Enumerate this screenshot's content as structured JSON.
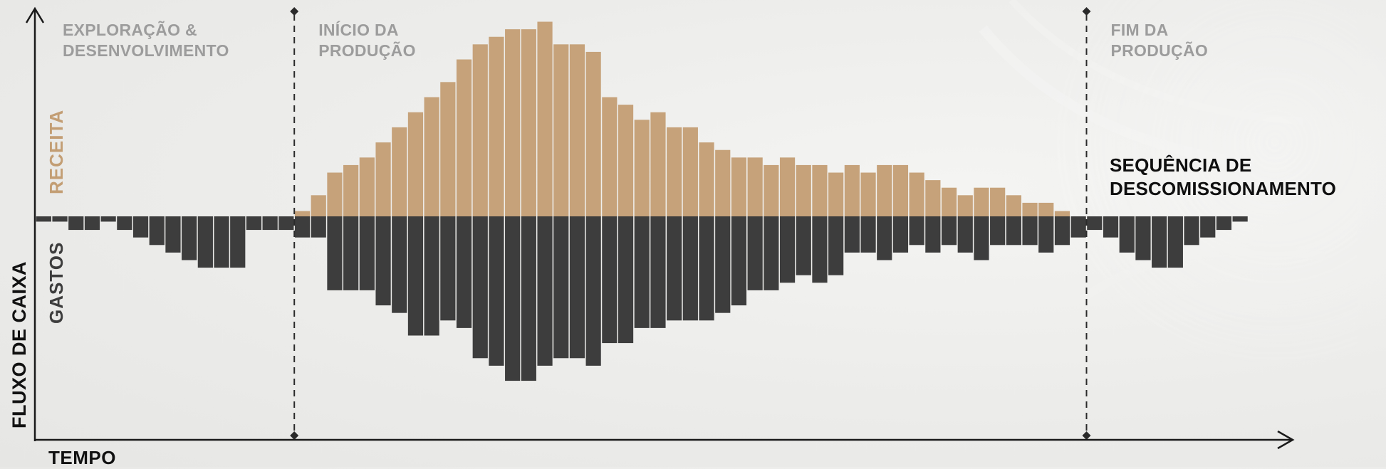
{
  "chart_data": {
    "type": "bar",
    "title": "",
    "xlabel": "TEMPO",
    "ylabel": "FLUXO DE CAIXA",
    "positive_label": "RECEITA",
    "negative_label": "GASTOS",
    "ylim": [
      -30,
      26
    ],
    "phases": [
      {
        "label": "EXPLORAÇÃO &\nDESENVOLVIMENTO",
        "start_period": 0
      },
      {
        "label": "INÍCIO DA\nPRODUÇÃO",
        "start_period": 16
      },
      {
        "label": "FIM DA\nPRODUÇÃO",
        "start_period": 65
      }
    ],
    "annotation": "SEQUÊNCIA DE\nDESCOMISSIONAMENTO",
    "receita": [
      0,
      0,
      0,
      0,
      0,
      0,
      0,
      0,
      0,
      0,
      0,
      0,
      0,
      0,
      0,
      0,
      0.7,
      2.8,
      5.8,
      6.8,
      7.8,
      9.8,
      11.8,
      13.8,
      15.8,
      17.8,
      20.8,
      22.8,
      23.8,
      24.8,
      24.8,
      25.8,
      22.8,
      22.8,
      21.8,
      15.8,
      14.8,
      12.8,
      13.8,
      11.8,
      11.8,
      9.8,
      8.8,
      7.8,
      7.8,
      6.8,
      7.8,
      6.8,
      6.8,
      5.8,
      6.8,
      5.8,
      6.8,
      6.8,
      5.8,
      4.8,
      3.8,
      2.8,
      3.8,
      3.8,
      2.8,
      1.8,
      1.8,
      0.7,
      0,
      0,
      0,
      0,
      0,
      0,
      0,
      0,
      0,
      0,
      0
    ],
    "gastos": [
      0.7,
      0.7,
      1.8,
      1.8,
      0.7,
      1.8,
      2.8,
      3.8,
      4.8,
      5.8,
      6.8,
      6.8,
      6.8,
      1.8,
      1.8,
      1.8,
      2.8,
      2.8,
      9.8,
      9.8,
      9.8,
      11.8,
      12.8,
      15.8,
      15.8,
      13.8,
      14.8,
      18.8,
      19.8,
      21.8,
      21.8,
      19.8,
      18.8,
      18.8,
      19.8,
      16.8,
      16.8,
      14.8,
      14.8,
      13.8,
      13.8,
      13.8,
      12.8,
      11.8,
      9.8,
      9.8,
      8.8,
      7.8,
      8.8,
      7.8,
      4.8,
      4.8,
      5.8,
      4.8,
      3.8,
      4.8,
      3.8,
      4.8,
      5.8,
      3.8,
      3.8,
      3.8,
      4.8,
      3.8,
      2.8,
      1.8,
      2.8,
      4.8,
      5.8,
      6.8,
      6.8,
      3.8,
      2.8,
      1.8,
      0.7
    ]
  }
}
